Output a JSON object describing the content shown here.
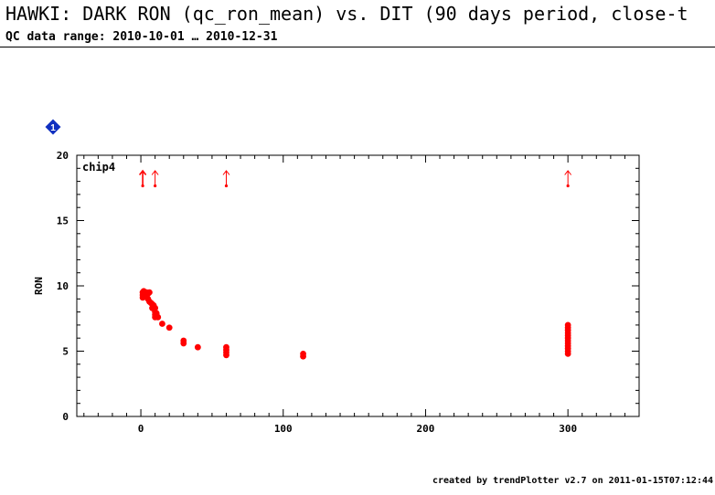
{
  "header": {
    "title": "HAWKI: DARK RON (qc_ron_mean) vs. DIT (90 days period, close-t",
    "subtitle": "QC data range: 2010-10-01 … 2010-12-31"
  },
  "footer": {
    "text": "created by trendPlotter v2.7 on 2011-01-15T07:12:44"
  },
  "badge": {
    "text": "1",
    "color": "#1030c0"
  },
  "colors": {
    "points": "#ff0000",
    "axes": "#000000"
  },
  "chart_data": {
    "type": "scatter",
    "panel_label": "chip4",
    "xlabel": "",
    "ylabel": "RON",
    "xlim": [
      -45,
      350
    ],
    "ylim": [
      0,
      20
    ],
    "x_ticks": [
      0,
      100,
      200,
      300
    ],
    "y_ticks": [
      0,
      5,
      10,
      15,
      20
    ],
    "x_minor_step": 10,
    "y_minor_step": 1,
    "grid": false,
    "series": [
      {
        "points": [
          [
            1.3,
            9.5
          ],
          [
            1.3,
            9.3
          ],
          [
            1.3,
            9.1
          ],
          [
            2,
            9.6
          ],
          [
            2,
            9.4
          ],
          [
            2,
            9.2
          ],
          [
            3,
            9.5
          ],
          [
            3,
            9.3
          ],
          [
            4,
            9.5
          ],
          [
            4,
            9.2
          ],
          [
            5,
            9.4
          ],
          [
            5,
            9.0
          ],
          [
            6,
            9.5
          ],
          [
            6,
            8.8
          ],
          [
            7,
            8.7
          ],
          [
            8,
            8.6
          ],
          [
            8,
            8.3
          ],
          [
            9,
            8.5
          ],
          [
            10,
            8.3
          ],
          [
            10,
            8.0
          ],
          [
            10,
            7.8
          ],
          [
            10,
            7.6
          ],
          [
            11,
            7.9
          ],
          [
            12,
            7.6
          ],
          [
            15,
            7.1
          ],
          [
            20,
            6.8
          ],
          [
            30,
            5.8
          ],
          [
            30,
            5.6
          ],
          [
            40,
            5.3
          ],
          [
            60,
            5.3
          ],
          [
            60,
            5.1
          ],
          [
            60,
            4.9
          ],
          [
            60,
            4.7
          ],
          [
            114,
            4.8
          ],
          [
            114,
            4.6
          ],
          [
            300,
            7.0
          ],
          [
            300,
            6.8
          ],
          [
            300,
            6.6
          ],
          [
            300,
            6.4
          ],
          [
            300,
            6.2
          ],
          [
            300,
            6.0
          ],
          [
            300,
            5.8
          ],
          [
            300,
            5.6
          ],
          [
            300,
            5.4
          ],
          [
            300,
            5.2
          ],
          [
            300,
            5.0
          ],
          [
            300,
            4.8
          ]
        ]
      }
    ],
    "off_scale_markers": [
      {
        "x": 1.3,
        "bold": true
      },
      {
        "x": 10,
        "bold": false
      },
      {
        "x": 60,
        "bold": false
      },
      {
        "x": 300,
        "bold": false
      }
    ]
  }
}
